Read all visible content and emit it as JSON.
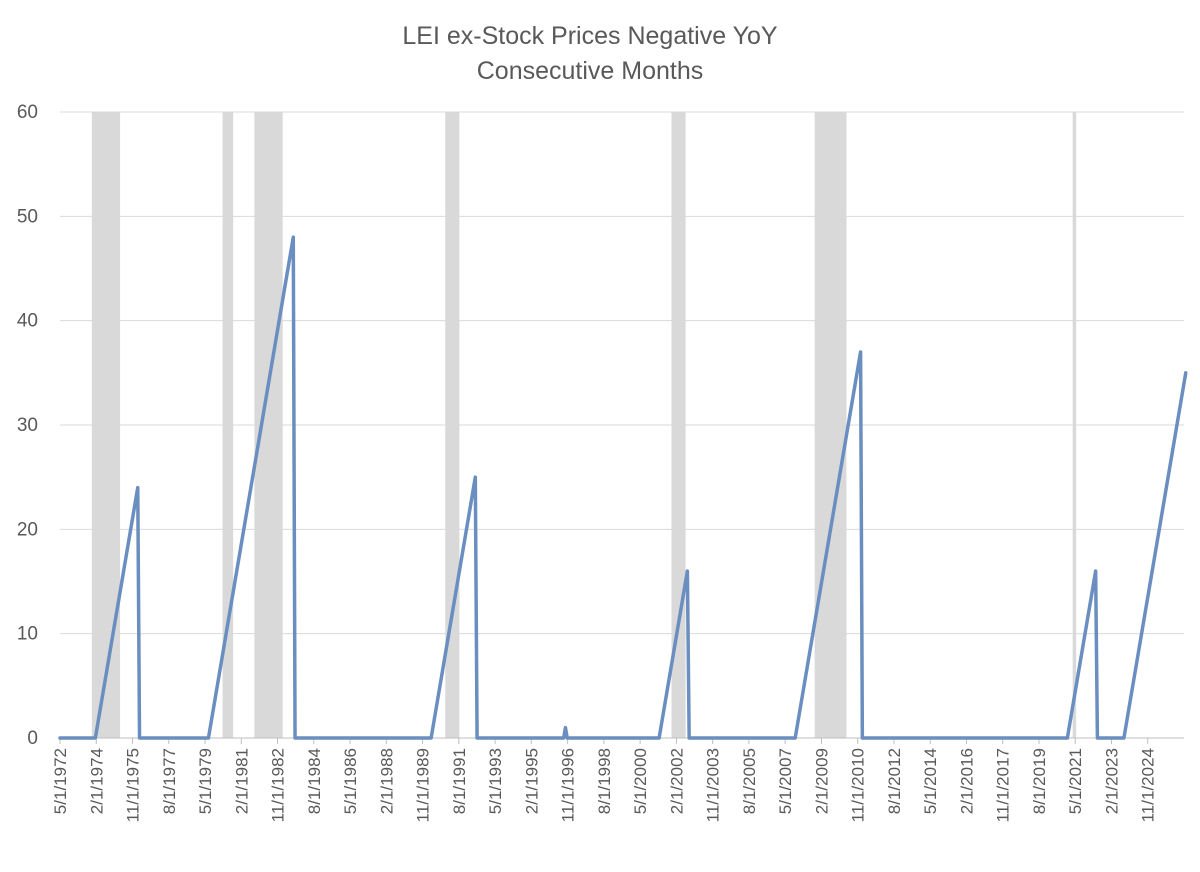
{
  "chart_data": {
    "type": "line",
    "title": [
      "LEI ex-Stock Prices Negative YoY",
      "Consecutive Months"
    ],
    "xlabel": "",
    "ylabel": "",
    "ylim": [
      0,
      60
    ],
    "yticks": [
      0,
      10,
      20,
      30,
      40,
      50,
      60
    ],
    "grid": true,
    "legend": "none",
    "x_range": [
      "5/1/1972",
      "5/1/2025"
    ],
    "x_tick_labels": [
      "5/1/1972",
      "2/1/1974",
      "11/1/1975",
      "8/1/1977",
      "5/1/1979",
      "2/1/1981",
      "11/1/1982",
      "8/1/1984",
      "5/1/1986",
      "2/1/1988",
      "11/1/1989",
      "8/1/1991",
      "5/1/1993",
      "2/1/1995",
      "11/1/1996",
      "8/1/1998",
      "5/1/2000",
      "2/1/2002",
      "11/1/2003",
      "8/1/2005",
      "5/1/2007",
      "2/1/2009",
      "11/1/2010",
      "8/1/2012",
      "5/1/2014",
      "2/1/2016",
      "11/1/2017",
      "8/1/2019",
      "5/1/2021",
      "2/1/2023",
      "11/1/2024"
    ],
    "line_color": "#6a8ebf",
    "shade_color": "#d9d9d9",
    "recession_shading": [
      {
        "start": "11/1/1973",
        "end": "3/1/1975"
      },
      {
        "start": "1/1/1980",
        "end": "7/1/1980"
      },
      {
        "start": "7/1/1981",
        "end": "11/1/1982"
      },
      {
        "start": "7/1/1990",
        "end": "3/1/1991"
      },
      {
        "start": "3/1/2001",
        "end": "11/1/2001"
      },
      {
        "start": "12/1/2007",
        "end": "6/1/2009"
      },
      {
        "start": "2/1/2020",
        "end": "4/1/2020"
      }
    ],
    "series": [
      {
        "points": [
          [
            "5/1/1972",
            0
          ],
          [
            "1/1/1974",
            0
          ],
          [
            "1/1/1976",
            24
          ],
          [
            "2/1/1976",
            0
          ],
          [
            "5/1/1979",
            0
          ],
          [
            "5/1/1983",
            48
          ],
          [
            "6/1/1983",
            0
          ],
          [
            "11/1/1989",
            0
          ],
          [
            "12/1/1991",
            25
          ],
          [
            "1/1/1992",
            0
          ],
          [
            "2/1/1996",
            0
          ],
          [
            "3/1/1996",
            1
          ],
          [
            "4/1/1996",
            0
          ],
          [
            "8/1/2000",
            0
          ],
          [
            "12/1/2001",
            16
          ],
          [
            "1/1/2002",
            0
          ],
          [
            "1/1/2007",
            0
          ],
          [
            "2/1/2010",
            37
          ],
          [
            "3/1/2010",
            0
          ],
          [
            "11/1/2019",
            0
          ],
          [
            "3/1/2021",
            16
          ],
          [
            "4/1/2021",
            0
          ],
          [
            "7/1/2022",
            0
          ],
          [
            "6/1/2025",
            35
          ]
        ]
      }
    ]
  }
}
